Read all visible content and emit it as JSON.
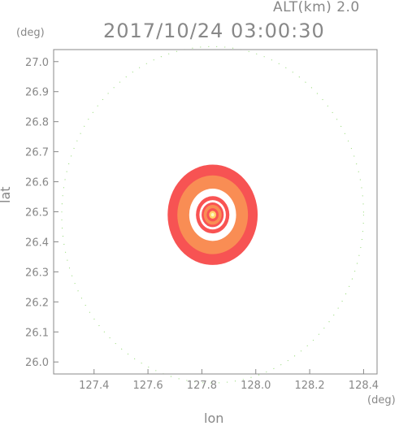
{
  "header": {
    "alt": "ALT(km)  2.0",
    "time": "2017/10/24 03:00:30"
  },
  "chart_data": {
    "type": "heatmap",
    "xlabel": "lon",
    "ylabel": "lat",
    "xunit": "(deg)",
    "yunit": "(deg)",
    "xlim": [
      127.25,
      128.45
    ],
    "ylim": [
      25.96,
      27.04
    ],
    "xticks": [
      127.4,
      127.6,
      127.8,
      128.0,
      128.2,
      128.4
    ],
    "xtick_labels": [
      "127.4",
      "127.6",
      "127.8",
      "128.0",
      "128.2",
      "128.4"
    ],
    "yticks": [
      26.0,
      26.1,
      26.2,
      26.3,
      26.4,
      26.5,
      26.6,
      26.7,
      26.8,
      26.9,
      27.0
    ],
    "ytick_labels": [
      "26.0",
      "26.1",
      "26.2",
      "26.3",
      "26.4",
      "26.5",
      "26.6",
      "26.7",
      "26.8",
      "26.9",
      "27.0"
    ],
    "center": {
      "lon": 127.84,
      "lat": 26.49
    },
    "echo_rings": [
      {
        "radius_deg": 0.167,
        "color": "#f75353"
      },
      {
        "radius_deg": 0.131,
        "color": "#f98d54"
      },
      {
        "radius_deg": 0.087,
        "color": "#ffffff"
      },
      {
        "radius_deg": 0.062,
        "color": "#f95353"
      },
      {
        "radius_deg": 0.049,
        "color": "#ffffff"
      },
      {
        "radius_deg": 0.041,
        "color": "#f95353"
      },
      {
        "radius_deg": 0.033,
        "color": "#f98d54"
      },
      {
        "radius_deg": 0.022,
        "color": "#f95353"
      },
      {
        "radius_deg": 0.013,
        "color": "#ffd36a"
      },
      {
        "radius_deg": 0.006,
        "color": "#fff8c0"
      }
    ],
    "outer_range_radius_deg": 0.56,
    "outer_range_color": "#8fd86f"
  }
}
